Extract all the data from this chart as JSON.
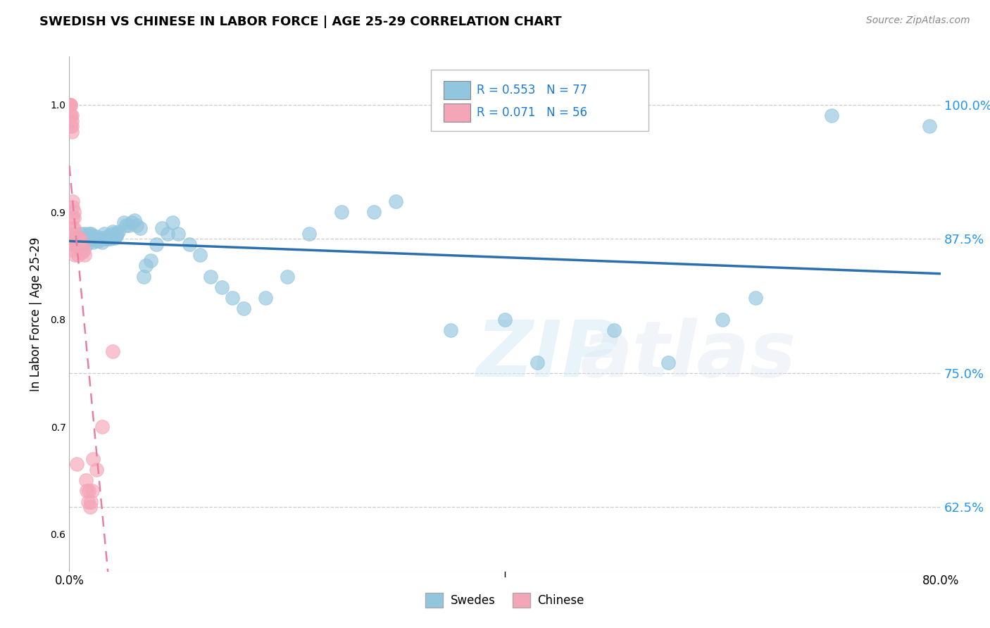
{
  "title": "SWEDISH VS CHINESE IN LABOR FORCE | AGE 25-29 CORRELATION CHART",
  "source": "Source: ZipAtlas.com",
  "ylabel": "In Labor Force | Age 25-29",
  "y_ticks": [
    0.625,
    0.75,
    0.875,
    1.0
  ],
  "y_tick_labels": [
    "62.5%",
    "75.0%",
    "87.5%",
    "100.0%"
  ],
  "x_range": [
    0.0,
    0.8
  ],
  "y_range": [
    0.565,
    1.045
  ],
  "blue_R": 0.553,
  "blue_N": 77,
  "pink_R": 0.071,
  "pink_N": 56,
  "blue_color": "#92c5de",
  "pink_color": "#f4a5b8",
  "blue_line_color": "#2c6fad",
  "pink_line_color": "#e87fa0",
  "legend_label_blue": "Swedes",
  "legend_label_pink": "Chinese",
  "blue_x": [
    0.005,
    0.005,
    0.01,
    0.01,
    0.012,
    0.013,
    0.014,
    0.015,
    0.016,
    0.018,
    0.018,
    0.019,
    0.02,
    0.02,
    0.021,
    0.022,
    0.022,
    0.023,
    0.024,
    0.025,
    0.025,
    0.026,
    0.027,
    0.028,
    0.03,
    0.03,
    0.031,
    0.032,
    0.033,
    0.034,
    0.035,
    0.036,
    0.037,
    0.038,
    0.04,
    0.04,
    0.041,
    0.042,
    0.043,
    0.044,
    0.045,
    0.05,
    0.052,
    0.055,
    0.057,
    0.06,
    0.062,
    0.065,
    0.068,
    0.07,
    0.075,
    0.08,
    0.085,
    0.09,
    0.095,
    0.1,
    0.11,
    0.12,
    0.13,
    0.14,
    0.15,
    0.16,
    0.18,
    0.2,
    0.22,
    0.25,
    0.28,
    0.3,
    0.35,
    0.4,
    0.43,
    0.5,
    0.55,
    0.6,
    0.63,
    0.7,
    0.79
  ],
  "blue_y": [
    0.875,
    0.875,
    0.875,
    0.88,
    0.87,
    0.875,
    0.88,
    0.875,
    0.87,
    0.875,
    0.88,
    0.875,
    0.875,
    0.88,
    0.875,
    0.878,
    0.872,
    0.875,
    0.875,
    0.873,
    0.877,
    0.875,
    0.873,
    0.875,
    0.872,
    0.876,
    0.875,
    0.88,
    0.876,
    0.875,
    0.875,
    0.878,
    0.876,
    0.875,
    0.88,
    0.882,
    0.878,
    0.876,
    0.878,
    0.88,
    0.882,
    0.89,
    0.888,
    0.888,
    0.89,
    0.892,
    0.888,
    0.885,
    0.84,
    0.85,
    0.855,
    0.87,
    0.885,
    0.88,
    0.89,
    0.88,
    0.87,
    0.86,
    0.84,
    0.83,
    0.82,
    0.81,
    0.82,
    0.84,
    0.88,
    0.9,
    0.9,
    0.91,
    0.79,
    0.8,
    0.76,
    0.79,
    0.76,
    0.8,
    0.82,
    0.99,
    0.98
  ],
  "pink_x": [
    0.0,
    0.0,
    0.0,
    0.001,
    0.001,
    0.001,
    0.001,
    0.001,
    0.002,
    0.002,
    0.002,
    0.002,
    0.002,
    0.002,
    0.002,
    0.002,
    0.003,
    0.003,
    0.003,
    0.003,
    0.003,
    0.004,
    0.004,
    0.004,
    0.004,
    0.005,
    0.005,
    0.005,
    0.006,
    0.006,
    0.007,
    0.007,
    0.007,
    0.008,
    0.008,
    0.008,
    0.009,
    0.009,
    0.01,
    0.01,
    0.011,
    0.012,
    0.012,
    0.013,
    0.014,
    0.015,
    0.016,
    0.017,
    0.018,
    0.019,
    0.02,
    0.021,
    0.022,
    0.025,
    0.03,
    0.04
  ],
  "pink_y": [
    1.0,
    1.0,
    1.0,
    1.0,
    1.0,
    0.99,
    0.99,
    0.98,
    0.99,
    0.985,
    0.98,
    0.975,
    0.88,
    0.875,
    0.87,
    0.865,
    0.91,
    0.905,
    0.895,
    0.885,
    0.875,
    0.9,
    0.895,
    0.885,
    0.875,
    0.875,
    0.87,
    0.86,
    0.875,
    0.87,
    0.875,
    0.87,
    0.665,
    0.875,
    0.87,
    0.86,
    0.875,
    0.87,
    0.875,
    0.87,
    0.865,
    0.868,
    0.863,
    0.865,
    0.86,
    0.65,
    0.64,
    0.63,
    0.64,
    0.625,
    0.63,
    0.64,
    0.67,
    0.66,
    0.7,
    0.77
  ]
}
